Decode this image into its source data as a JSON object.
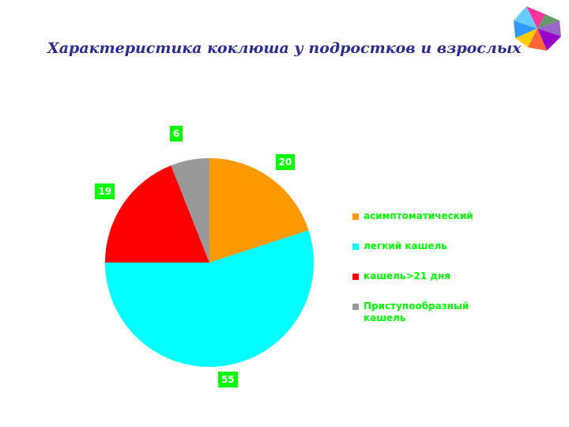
{
  "title": "Характеристика коклюша у подростков и взрослых",
  "logo_icon": "pinwheel-logo-icon",
  "chart_data": {
    "type": "pie",
    "title": "",
    "categories": [
      "асимптоматический",
      "легкий кашель",
      "кашель>21 дня",
      "Приступообразный кашель"
    ],
    "values": [
      20,
      55,
      19,
      6
    ],
    "colors": [
      "#ff9900",
      "#00ffff",
      "#ff0000",
      "#999999"
    ],
    "data_labels": [
      "20",
      "55",
      "19",
      "6"
    ],
    "legend_placement": "right",
    "label_color": "#00ff00"
  }
}
